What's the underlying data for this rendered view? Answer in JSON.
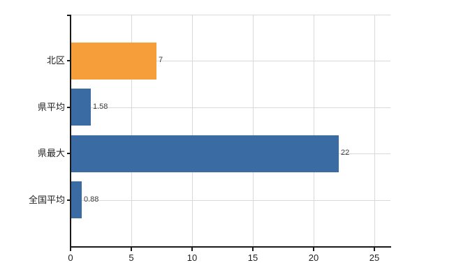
{
  "chart_data": {
    "type": "bar",
    "orientation": "horizontal",
    "title": "",
    "categories": [
      "北区",
      "県平均",
      "県最大",
      "全国平均"
    ],
    "values": [
      7,
      1.58,
      22,
      0.88
    ],
    "value_labels": [
      "7",
      "1.58",
      "22",
      "0.88"
    ],
    "bar_colors": [
      "#f59e3a",
      "#3a6ba3",
      "#3a6ba3",
      "#3a6ba3"
    ],
    "x_ticks": [
      0,
      5,
      10,
      15,
      20,
      25
    ],
    "xlim": [
      0,
      26.3
    ],
    "grid": true,
    "legend": "none",
    "colors": {
      "orange_bar": "#f59e3a",
      "blue_bar": "#3a6ba3",
      "grid": "#d9d9d9",
      "axis": "#1a1a1a",
      "category_label": "#1f1f1f",
      "value_label": "#3d3d3d",
      "background": "#ffffff"
    }
  }
}
